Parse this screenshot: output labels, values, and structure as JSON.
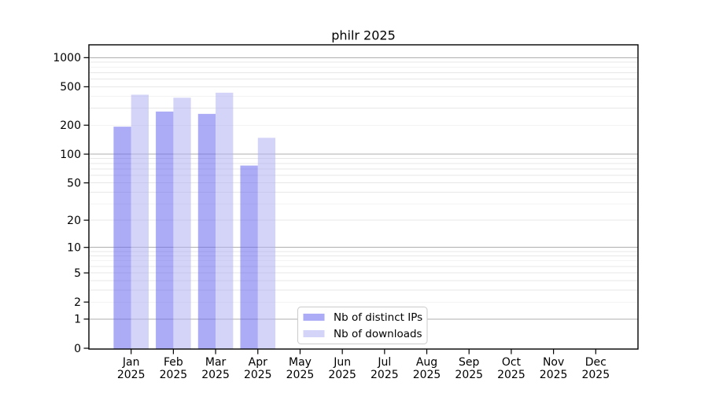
{
  "chart_data": {
    "type": "bar",
    "title": "philr 2025",
    "x_categories": [
      "Jan",
      "Feb",
      "Mar",
      "Apr",
      "May",
      "Jun",
      "Jul",
      "Aug",
      "Sep",
      "Oct",
      "Nov",
      "Dec"
    ],
    "x_sublabel": "2025",
    "series": [
      {
        "name": "Nb of distinct IPs",
        "color": "#6666ee",
        "rendered_color": "#aaaaf4",
        "fill_opacity": 0.55,
        "values": [
          193,
          277,
          262,
          76,
          null,
          null,
          null,
          null,
          null,
          null,
          null,
          null
        ]
      },
      {
        "name": "Nb of downloads",
        "color": "#b0b0f2",
        "rendered_color": "#d9d9f8",
        "fill_opacity": 0.55,
        "values": [
          414,
          385,
          434,
          148,
          null,
          null,
          null,
          null,
          null,
          null,
          null,
          null
        ]
      }
    ],
    "y_scale": "log1p",
    "y_ticks": [
      0,
      1,
      2,
      5,
      10,
      20,
      50,
      100,
      200,
      500,
      1000
    ],
    "ylim": [
      0,
      1332
    ],
    "grid": {
      "on": true,
      "major_values": [
        1,
        10,
        100,
        1000
      ],
      "minor_values": [
        2,
        3,
        4,
        5,
        6,
        7,
        8,
        9,
        20,
        30,
        40,
        50,
        60,
        70,
        80,
        90,
        200,
        300,
        400,
        500,
        600,
        700,
        800,
        900
      ],
      "major_color": "#afafaf",
      "minor_color": "#e7e7e7"
    },
    "axis_color": "#000000",
    "plot_background": "#ffffff",
    "legend": {
      "position": "bottom-center",
      "border_color": "#cbcbcb",
      "background": "#ffffff"
    }
  }
}
